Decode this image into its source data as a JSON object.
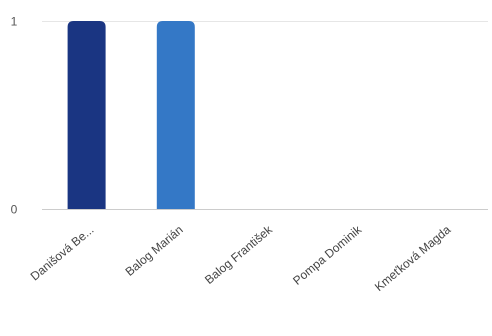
{
  "chart_data": {
    "type": "bar",
    "categories": [
      "Danišová Be...",
      "Balog Marián",
      "Balog František",
      "Pompa Dominik",
      "Kmeťková Magda"
    ],
    "values": [
      1,
      1,
      0,
      0,
      0
    ],
    "bar_colors": [
      "#1a3582",
      "#3478c6",
      "#5fa0e0",
      "#7fb5ea",
      "#9ec9f0"
    ],
    "yticks": [
      0,
      1
    ],
    "ylim": [
      0,
      1
    ],
    "grid": true,
    "title": "",
    "xlabel": "",
    "ylabel": ""
  }
}
